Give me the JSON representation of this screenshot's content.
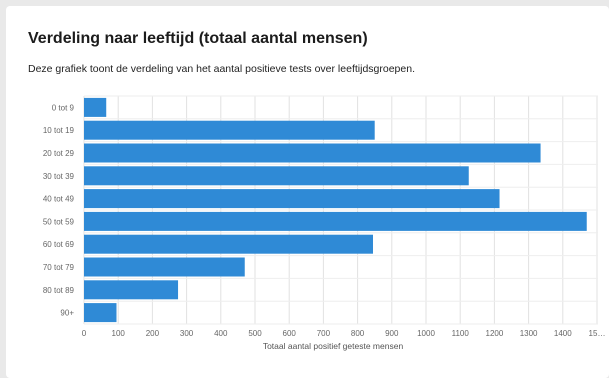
{
  "chart_data": {
    "type": "bar",
    "orientation": "horizontal",
    "title": "Verdeling naar leeftijd (totaal aantal mensen)",
    "subtitle": "Deze grafiek toont de verdeling van het aantal positieve tests over leeftijdsgroepen.",
    "xlabel": "Totaal aantal positief geteste mensen",
    "ylabel": "",
    "categories": [
      "0 tot 9",
      "10 tot 19",
      "20 tot 29",
      "30 tot 39",
      "40 tot 49",
      "50 tot 59",
      "60 tot 69",
      "70 tot 79",
      "80 tot 89",
      "90+"
    ],
    "values": [
      65,
      850,
      1335,
      1125,
      1215,
      1470,
      845,
      470,
      275,
      95
    ],
    "x_ticks": [
      "0",
      "100",
      "200",
      "300",
      "400",
      "500",
      "600",
      "700",
      "800",
      "900",
      "1000",
      "1100",
      "1200",
      "1300",
      "1400",
      "15…"
    ],
    "xlim": [
      0,
      1500
    ],
    "grid": true,
    "bar_color": "#2f8ad6"
  }
}
